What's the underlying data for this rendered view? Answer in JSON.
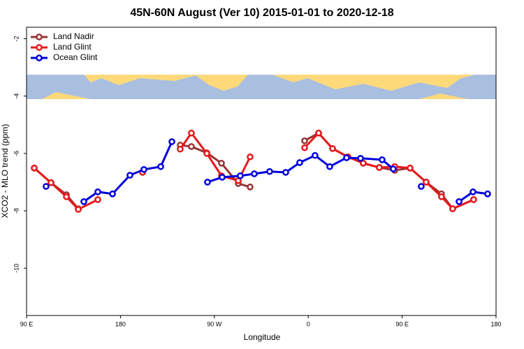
{
  "chart_data": {
    "type": "line",
    "title": "45N-60N August (Ver 10)   2015-01-01 to 2020-12-18",
    "x_label": "Longitude",
    "y_label": "XCO2 - MLO trend (ppm)",
    "xlim": [
      90,
      540
    ],
    "ylim": [
      -11.65,
      -1.6
    ],
    "xticks": [
      {
        "value": 90,
        "label": "90 E"
      },
      {
        "value": 180,
        "label": "180"
      },
      {
        "value": 270,
        "label": "90 W"
      },
      {
        "value": 360,
        "label": "0"
      },
      {
        "value": 450,
        "label": "90 E"
      },
      {
        "value": 540,
        "label": "180"
      }
    ],
    "yticks": [
      -2,
      -4,
      -6,
      -8,
      -10
    ],
    "legend": "upper left",
    "series": [
      {
        "name": "Land Nadir",
        "color": "#993333",
        "x": [
          97.4,
          113.4,
          128.2,
          139.6,
          190,
          237.3,
          248,
          262.8,
          276.8,
          292.9,
          304.3,
          330,
          356.5,
          369.9,
          383.3,
          398,
          412.7,
          428.1,
          442.9,
          457.6,
          473,
          487.7,
          498.4,
          518.5
        ],
        "values": [
          -6.51,
          -7.02,
          -7.44,
          -7.93,
          null,
          -5.71,
          -5.76,
          -5.98,
          -6.34,
          -7.05,
          -7.17,
          null,
          -5.56,
          -5.29,
          -5.83,
          -6.12,
          -6.34,
          -6.49,
          -6.59,
          -6.51,
          -7.0,
          -7.41,
          -7.93,
          -7.61
        ]
      },
      {
        "name": "Land Glint",
        "color": "#e41a1c",
        "x": [
          97.4,
          113.4,
          128.2,
          139.6,
          158.3,
          180,
          201.2,
          220,
          237.3,
          248,
          262.8,
          276.8,
          292.9,
          304.3,
          330,
          356.5,
          369.9,
          383.3,
          398,
          412.7,
          428.1,
          442.9,
          457.6,
          473,
          487.7,
          498.4,
          518.5
        ],
        "values": [
          -6.51,
          -7.02,
          -7.51,
          -7.95,
          -7.61,
          null,
          -6.66,
          null,
          -5.85,
          -5.29,
          -6.0,
          -6.78,
          -6.95,
          -6.12,
          null,
          -5.8,
          -5.29,
          -5.83,
          -6.12,
          -6.34,
          -6.49,
          -6.46,
          -6.51,
          -7.0,
          -7.51,
          -7.93,
          -7.61
        ]
      },
      {
        "name": "Ocean Glint",
        "color": "#0000dd",
        "x": [
          108.7,
          126,
          144.9,
          158.3,
          172.4,
          189.1,
          202.5,
          218.6,
          229.3,
          246,
          263.4,
          277.5,
          294.9,
          308.3,
          323,
          338.4,
          351.8,
          366.5,
          380.6,
          396.7,
          410.1,
          430.8,
          441.5,
          455,
          468.3,
          486,
          504.5,
          517.9,
          531.9
        ],
        "values": [
          -7.15,
          null,
          -7.68,
          -7.34,
          -7.41,
          -6.76,
          -6.56,
          -6.46,
          -5.59,
          null,
          -7.0,
          -6.83,
          -6.78,
          -6.71,
          -6.63,
          -6.66,
          -6.32,
          -6.07,
          -6.46,
          -6.15,
          -6.17,
          -6.22,
          -6.54,
          null,
          -7.15,
          null,
          -7.68,
          -7.34,
          -7.41
        ]
      }
    ]
  }
}
